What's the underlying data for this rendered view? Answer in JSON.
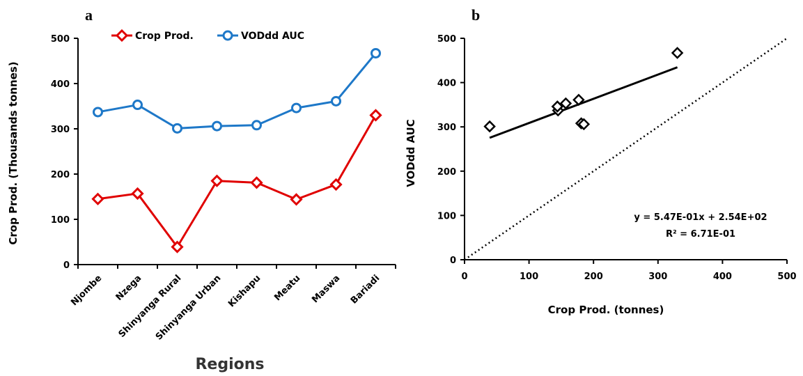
{
  "chart_data": [
    {
      "panel": "a",
      "type": "line",
      "categories": [
        "Njombe",
        "Nzega",
        "Shinyanga Rural",
        "Shinyanga Urban",
        "Kishapu",
        "Meatu",
        "Maswa",
        "Bariadi"
      ],
      "series": [
        {
          "name": "Crop Prod.",
          "color": "#e00000",
          "marker": "diamond",
          "values": [
            145,
            157,
            39,
            185,
            181,
            144,
            177,
            330
          ]
        },
        {
          "name": "VODdd AUC",
          "color": "#1e78c8",
          "marker": "circle",
          "values": [
            337,
            353,
            301,
            306,
            308,
            346,
            361,
            467
          ]
        }
      ],
      "xlabel": "Regions",
      "ylabel": "Crop Prod. (Thousands tonnes)",
      "ylim": [
        0,
        500
      ],
      "yticks": [
        0,
        100,
        200,
        300,
        400,
        500
      ],
      "grid": false,
      "legend_position": "top"
    },
    {
      "panel": "b",
      "type": "scatter",
      "points": [
        {
          "x": 39,
          "y": 301
        },
        {
          "x": 145,
          "y": 337
        },
        {
          "x": 144,
          "y": 346
        },
        {
          "x": 157,
          "y": 353
        },
        {
          "x": 177,
          "y": 361
        },
        {
          "x": 181,
          "y": 308
        },
        {
          "x": 185,
          "y": 306
        },
        {
          "x": 330,
          "y": 467
        }
      ],
      "trendline": {
        "slope": 0.547,
        "intercept": 254,
        "x_range": [
          39,
          330
        ]
      },
      "reference_line": {
        "type": "1:1",
        "style": "dotted"
      },
      "equation": "y = 5.47E-01x + 2.54E+02",
      "r_squared": "R² = 6.71E-01",
      "xlabel": "Crop Prod. (tonnes)",
      "ylabel": "VODdd AUC",
      "xlim": [
        0,
        500
      ],
      "ylim": [
        0,
        500
      ],
      "xticks": [
        0,
        100,
        200,
        300,
        400,
        500
      ],
      "yticks": [
        0,
        100,
        200,
        300,
        400,
        500
      ],
      "grid": false
    }
  ]
}
